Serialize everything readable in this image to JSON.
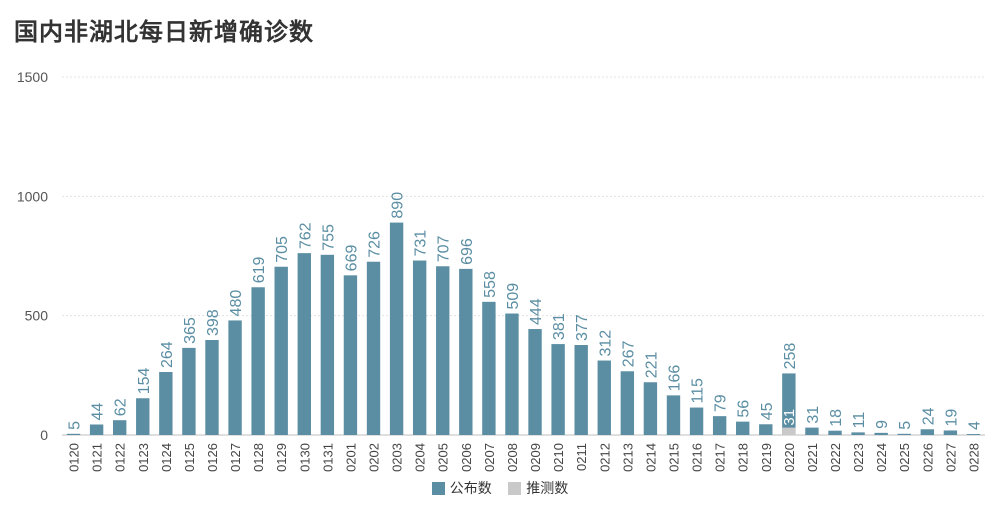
{
  "title": "国内非湖北每日新增确诊数",
  "legend": [
    {
      "label": "公布数",
      "color": "#5b8ea3"
    },
    {
      "label": "推测数",
      "color": "#c9c9c9"
    }
  ],
  "chart_data": {
    "type": "bar",
    "title": "国内非湖北每日新增确诊数",
    "ylim": [
      0,
      1500
    ],
    "yticks": [
      "0",
      "500",
      "1000",
      "1500"
    ],
    "categories": [
      "0120",
      "0121",
      "0122",
      "0123",
      "0124",
      "0125",
      "0126",
      "0127",
      "0128",
      "0129",
      "0130",
      "0131",
      "0201",
      "0202",
      "0203",
      "0204",
      "0205",
      "0206",
      "0207",
      "0208",
      "0209",
      "0210",
      "0211",
      "0212",
      "0213",
      "0214",
      "0215",
      "0216",
      "0217",
      "0218",
      "0219",
      "0220",
      "0221",
      "0222",
      "0223",
      "0224",
      "0225",
      "0226",
      "0227",
      "0228"
    ],
    "series": [
      {
        "name": "公布数",
        "color": "#5b8ea3",
        "values": [
          5,
          44,
          62,
          154,
          264,
          365,
          398,
          480,
          619,
          705,
          762,
          755,
          669,
          726,
          890,
          731,
          707,
          696,
          558,
          509,
          444,
          381,
          377,
          312,
          267,
          221,
          166,
          115,
          79,
          56,
          45,
          258,
          31,
          18,
          11,
          9,
          5,
          24,
          19,
          4
        ]
      },
      {
        "name": "推测数",
        "color": "#c9c9c9",
        "values": [
          null,
          null,
          null,
          null,
          null,
          null,
          null,
          null,
          null,
          null,
          null,
          null,
          null,
          null,
          null,
          null,
          null,
          null,
          null,
          null,
          null,
          null,
          null,
          null,
          null,
          null,
          null,
          null,
          null,
          null,
          null,
          31,
          null,
          null,
          null,
          null,
          null,
          null,
          null,
          null
        ]
      }
    ],
    "grid": true,
    "legend_position": "bottom"
  }
}
